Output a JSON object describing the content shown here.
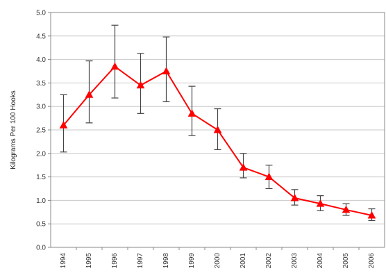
{
  "chart_data": {
    "type": "line",
    "title": "",
    "xlabel": "",
    "ylabel": "Kilograms Per 100 Hooks",
    "ylim": [
      0,
      5
    ],
    "yticks": [
      "0.0",
      "0.5",
      "1.0",
      "1.5",
      "2.0",
      "2.5",
      "3.0",
      "3.5",
      "4.0",
      "4.5",
      "5.0"
    ],
    "grid": true,
    "legend": "none",
    "categories": [
      "1994",
      "1995",
      "1996",
      "1997",
      "1998",
      "1999",
      "2000",
      "2001",
      "2002",
      "2003",
      "2004",
      "2005",
      "2006"
    ],
    "series": [
      {
        "color": "#ff0000",
        "marker": "triangle",
        "values": [
          2.6,
          3.25,
          3.85,
          3.45,
          3.75,
          2.85,
          2.5,
          1.7,
          1.5,
          1.05,
          0.93,
          0.8,
          0.68
        ],
        "error_low": [
          2.03,
          2.65,
          3.18,
          2.85,
          3.1,
          2.38,
          2.08,
          1.48,
          1.25,
          0.9,
          0.78,
          0.68,
          0.57
        ],
        "error_high": [
          3.25,
          3.97,
          4.73,
          4.13,
          4.48,
          3.43,
          2.95,
          2.0,
          1.75,
          1.23,
          1.1,
          0.93,
          0.82
        ]
      }
    ]
  }
}
